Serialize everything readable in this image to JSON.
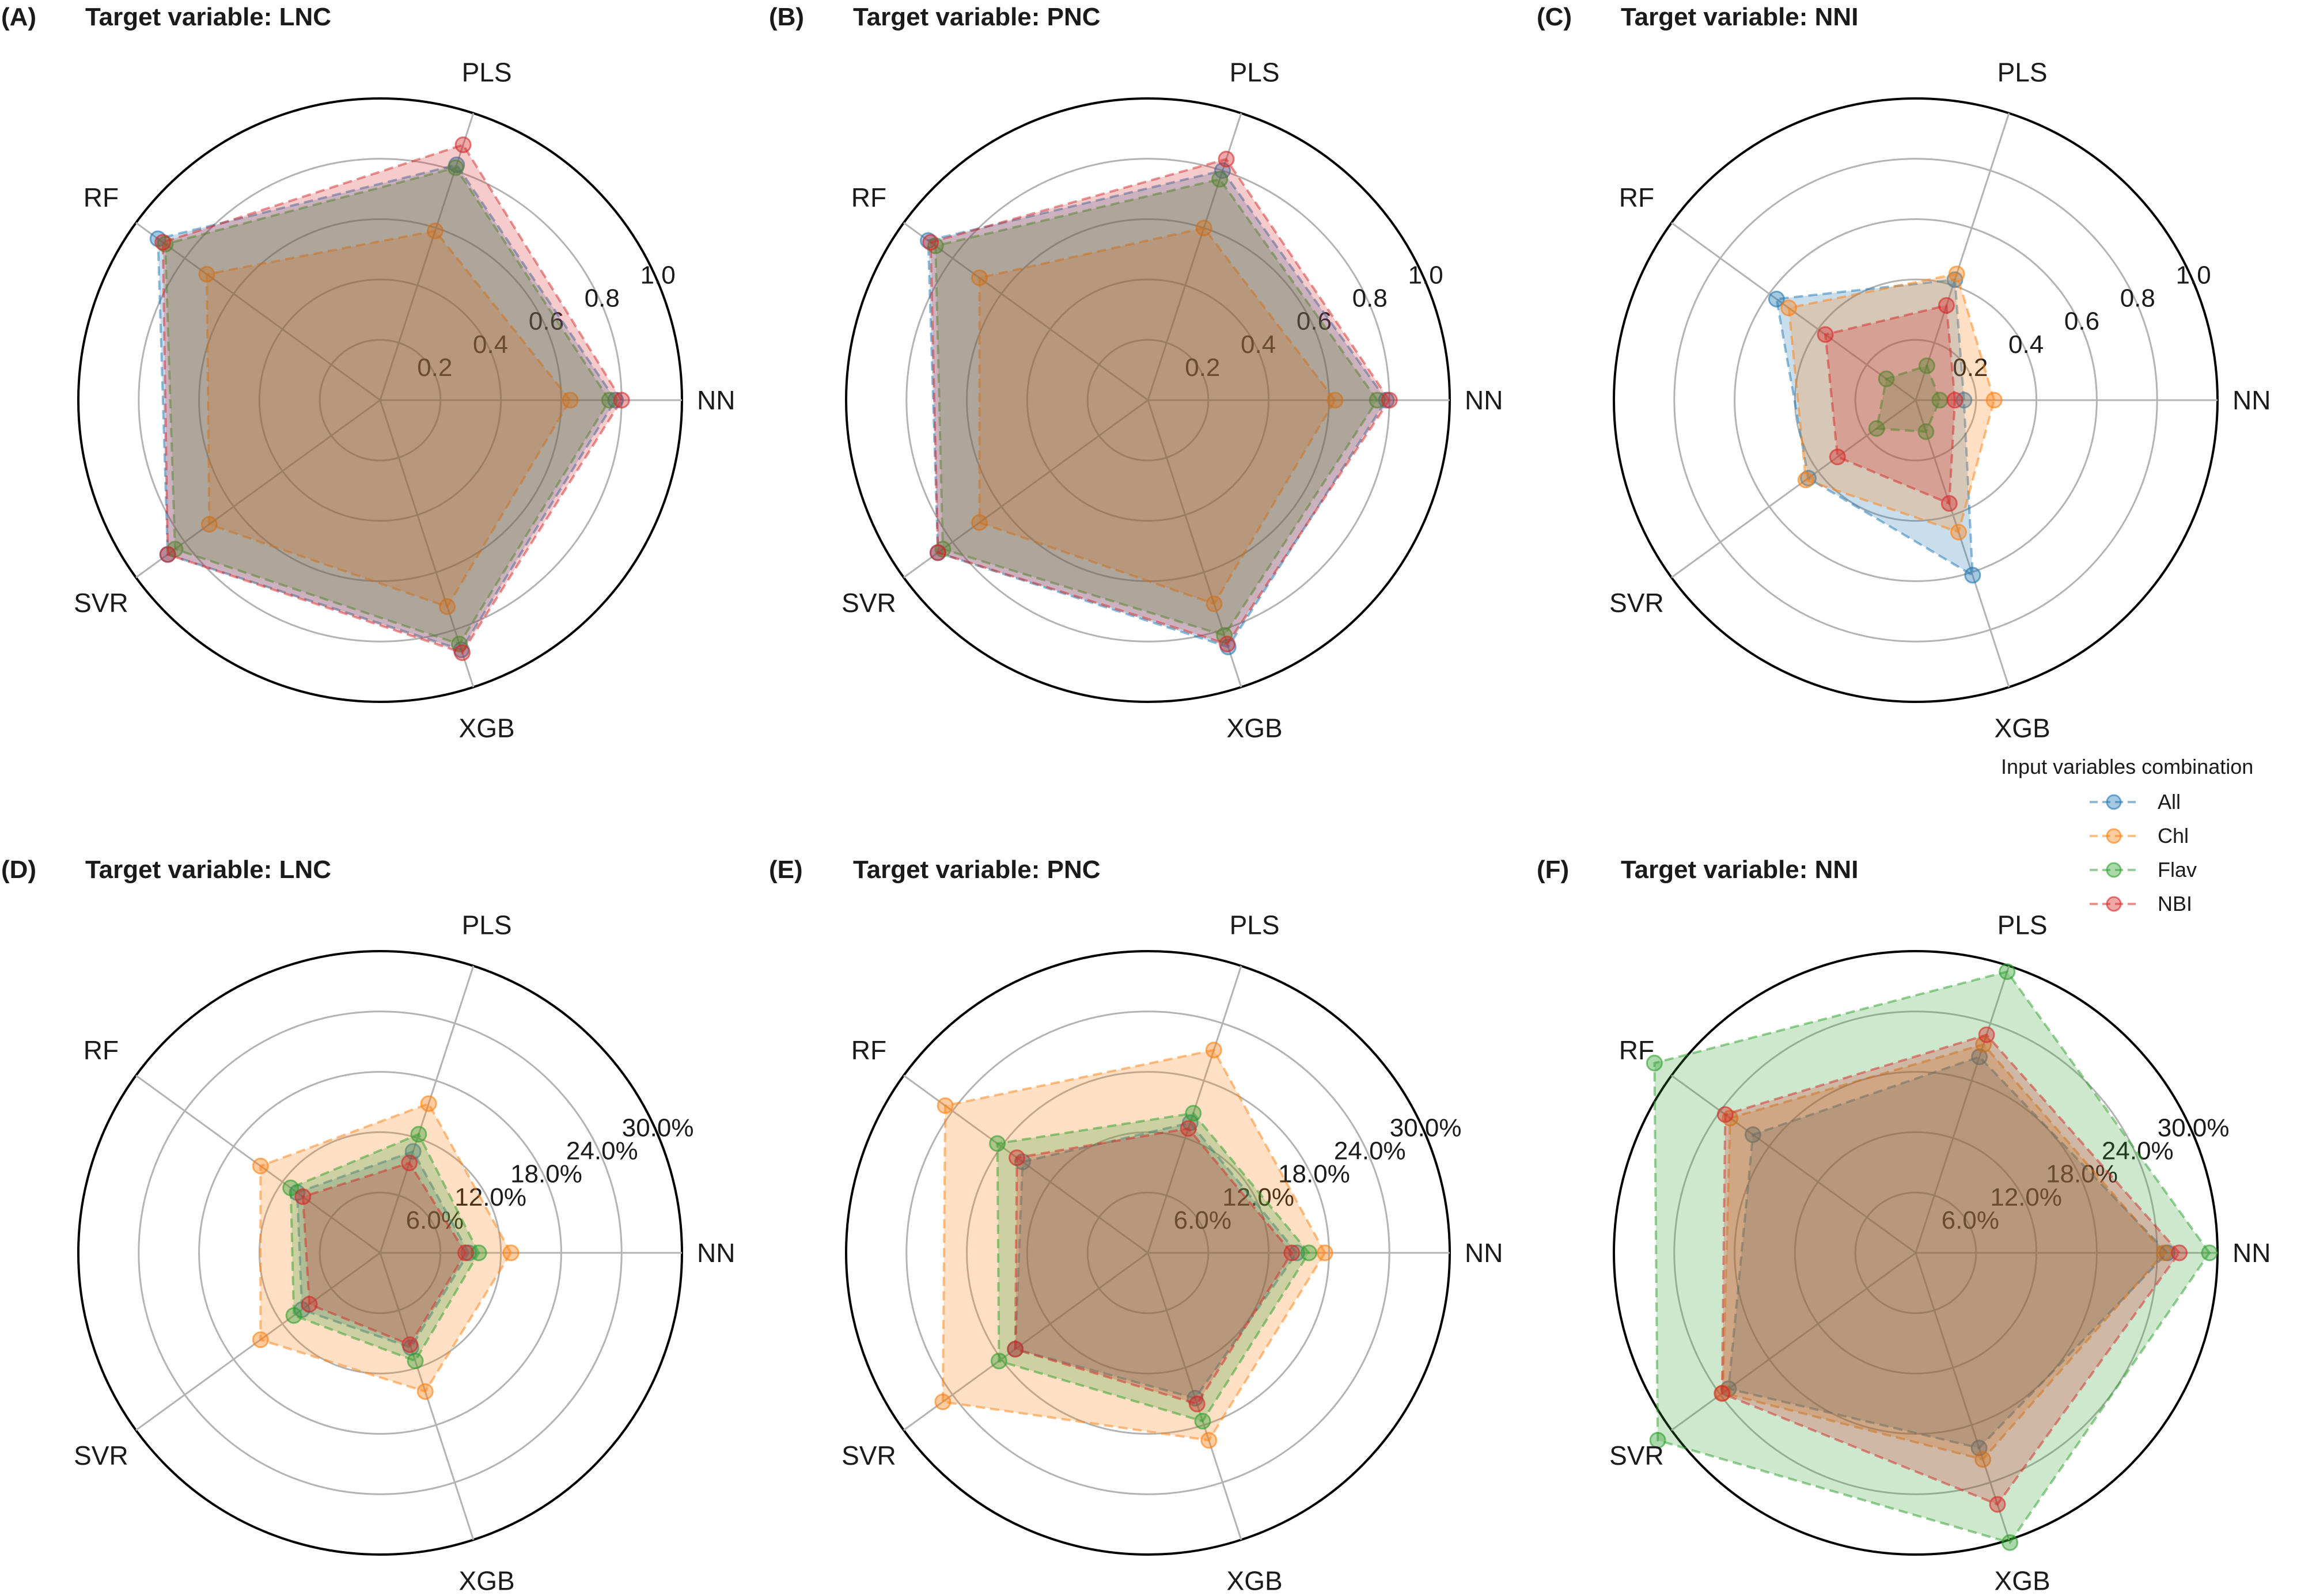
{
  "figure": {
    "legend": {
      "title": "Input variables combination",
      "placement": "right, between rows",
      "entries": [
        {
          "name": "All",
          "color": "#1f77b4"
        },
        {
          "name": "Chl",
          "color": "#ff7f0e"
        },
        {
          "name": "Flav",
          "color": "#2ca02c"
        },
        {
          "name": "NBI",
          "color": "#d62728"
        }
      ]
    }
  },
  "chart_data": [
    {
      "type": "radar",
      "panel": "(A)",
      "title": "Target variable: LNC",
      "axes": [
        "NN",
        "PLS",
        "RF",
        "SVR",
        "XGB"
      ],
      "range": [
        0,
        1.0
      ],
      "ticks": [
        0.2,
        0.4,
        0.6,
        0.8,
        1.0
      ],
      "tick_labels": [
        "0.2",
        "0.4",
        "0.6",
        "0.8",
        "1.0"
      ],
      "series": [
        {
          "name": "All",
          "values": [
            0.78,
            0.82,
            0.91,
            0.87,
            0.87
          ]
        },
        {
          "name": "Chl",
          "values": [
            0.63,
            0.59,
            0.71,
            0.7,
            0.72
          ]
        },
        {
          "name": "Flav",
          "values": [
            0.76,
            0.81,
            0.88,
            0.84,
            0.85
          ]
        },
        {
          "name": "NBI",
          "values": [
            0.8,
            0.89,
            0.89,
            0.87,
            0.88
          ]
        }
      ]
    },
    {
      "type": "radar",
      "panel": "(B)",
      "title": "Target variable: PNC",
      "axes": [
        "NN",
        "PLS",
        "RF",
        "SVR",
        "XGB"
      ],
      "range": [
        0,
        1.0
      ],
      "ticks": [
        0.2,
        0.4,
        0.6,
        0.8,
        1.0
      ],
      "tick_labels": [
        "0.2",
        "0.4",
        "0.6",
        "0.8",
        "1.0"
      ],
      "series": [
        {
          "name": "All",
          "values": [
            0.79,
            0.8,
            0.9,
            0.86,
            0.86
          ]
        },
        {
          "name": "Chl",
          "values": [
            0.62,
            0.6,
            0.69,
            0.69,
            0.71
          ]
        },
        {
          "name": "Flav",
          "values": [
            0.76,
            0.77,
            0.87,
            0.84,
            0.82
          ]
        },
        {
          "name": "NBI",
          "values": [
            0.8,
            0.84,
            0.89,
            0.86,
            0.85
          ]
        }
      ]
    },
    {
      "type": "radar",
      "panel": "(C)",
      "title": "Target variable: NNI",
      "axes": [
        "NN",
        "PLS",
        "RF",
        "SVR",
        "XGB"
      ],
      "range": [
        0,
        1.0
      ],
      "ticks": [
        0.2,
        0.4,
        0.6,
        0.8,
        1.0
      ],
      "tick_labels": [
        "0.2",
        "0.4",
        "0.6",
        "0.8",
        "1.0"
      ],
      "series": [
        {
          "name": "All",
          "values": [
            0.16,
            0.42,
            0.57,
            0.44,
            0.61
          ]
        },
        {
          "name": "Chl",
          "values": [
            0.26,
            0.44,
            0.52,
            0.45,
            0.46
          ]
        },
        {
          "name": "Flav",
          "values": [
            0.08,
            0.12,
            0.12,
            0.16,
            0.11
          ]
        },
        {
          "name": "NBI",
          "values": [
            0.13,
            0.33,
            0.37,
            0.32,
            0.36
          ]
        }
      ]
    },
    {
      "type": "radar",
      "panel": "(D)",
      "title": "Target variable: LNC",
      "axes": [
        "NN",
        "PLS",
        "RF",
        "SVR",
        "XGB"
      ],
      "range": [
        0,
        30.0
      ],
      "ticks": [
        6,
        12,
        18,
        24,
        30
      ],
      "tick_labels": [
        "6.0%",
        "12.0%",
        "18.0%",
        "24.0%",
        "30.0%"
      ],
      "unit": "%",
      "series": [
        {
          "name": "All",
          "values": [
            8.8,
            10.6,
            10.2,
            9.6,
            9.9
          ]
        },
        {
          "name": "Chl",
          "values": [
            13.0,
            15.6,
            14.7,
            14.7,
            14.5
          ]
        },
        {
          "name": "Flav",
          "values": [
            9.8,
            12.4,
            11.0,
            10.6,
            11.3
          ]
        },
        {
          "name": "NBI",
          "values": [
            8.5,
            9.4,
            9.5,
            8.7,
            9.6
          ]
        }
      ]
    },
    {
      "type": "radar",
      "panel": "(E)",
      "title": "Target variable: PNC",
      "axes": [
        "NN",
        "PLS",
        "RF",
        "SVR",
        "XGB"
      ],
      "range": [
        0,
        30.0
      ],
      "ticks": [
        6,
        12,
        18,
        24,
        30
      ],
      "tick_labels": [
        "6.0%",
        "12.0%",
        "18.0%",
        "24.0%",
        "30.0%"
      ],
      "unit": "%",
      "series": [
        {
          "name": "All",
          "values": [
            14.8,
            13.6,
            15.4,
            16.3,
            15.2
          ]
        },
        {
          "name": "Chl",
          "values": [
            17.6,
            21.2,
            24.9,
            25.2,
            19.6
          ]
        },
        {
          "name": "Flav",
          "values": [
            16.0,
            14.6,
            18.5,
            18.3,
            17.6
          ]
        },
        {
          "name": "NBI",
          "values": [
            14.3,
            13.0,
            16.1,
            16.3,
            15.8
          ]
        }
      ]
    },
    {
      "type": "radar",
      "panel": "(F)",
      "title": "Target variable: NNI",
      "axes": [
        "NN",
        "PLS",
        "RF",
        "SVR",
        "XGB"
      ],
      "range": [
        0,
        30.0
      ],
      "ticks": [
        6,
        12,
        18,
        24,
        30
      ],
      "tick_labels": [
        "6.0%",
        "12.0%",
        "18.0%",
        "24.0%",
        "30.0%"
      ],
      "unit": "%",
      "series": [
        {
          "name": "All",
          "values": [
            25.0,
            20.5,
            20.0,
            23.0,
            20.4
          ]
        },
        {
          "name": "Chl",
          "values": [
            24.7,
            21.8,
            22.8,
            23.7,
            21.6
          ]
        },
        {
          "name": "Flav",
          "values": [
            29.2,
            29.4,
            32.1,
            31.7,
            30.3
          ]
        },
        {
          "name": "NBI",
          "values": [
            26.2,
            22.8,
            23.4,
            23.8,
            26.3
          ]
        }
      ]
    }
  ]
}
